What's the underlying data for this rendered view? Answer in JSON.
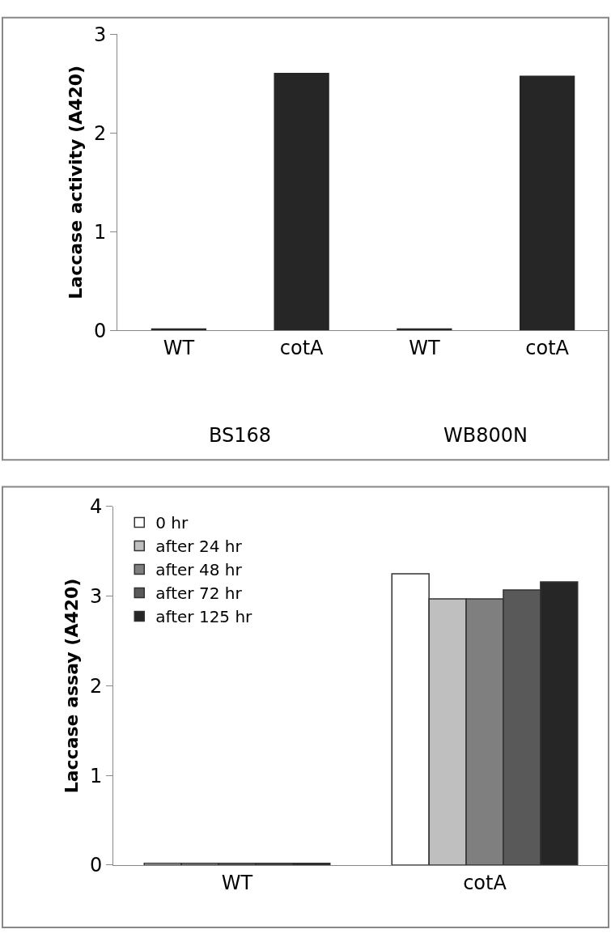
{
  "chart_data": [
    {
      "type": "bar",
      "ylabel": "Laccase activity (A420)",
      "categories": [
        "WT",
        "cotA",
        "WT",
        "cotA"
      ],
      "values": [
        0.02,
        2.61,
        0.02,
        2.58
      ],
      "color": "#262626",
      "ylim": [
        0,
        3
      ],
      "yticks": [
        0,
        1,
        2,
        3
      ],
      "annotations": [
        "BS168",
        "WB800N"
      ]
    },
    {
      "type": "bar",
      "ylabel": "Laccase assay (A420)",
      "categories": [
        "WT",
        "cotA"
      ],
      "ylim": [
        0,
        4
      ],
      "yticks": [
        0,
        1,
        2,
        3,
        4
      ],
      "legend": "top left",
      "series": [
        {
          "name": "0 hr",
          "color": "#ffffff",
          "values": [
            0.02,
            3.25
          ]
        },
        {
          "name": "after 24 hr",
          "color": "#bfbfbf",
          "values": [
            0.02,
            2.97
          ]
        },
        {
          "name": "after 48 hr",
          "color": "#7f7f7f",
          "values": [
            0.02,
            2.97
          ]
        },
        {
          "name": "after 72 hr",
          "color": "#595959",
          "values": [
            0.02,
            3.07
          ]
        },
        {
          "name": "after 125 hr",
          "color": "#262626",
          "values": [
            0.02,
            3.16
          ]
        }
      ]
    }
  ]
}
